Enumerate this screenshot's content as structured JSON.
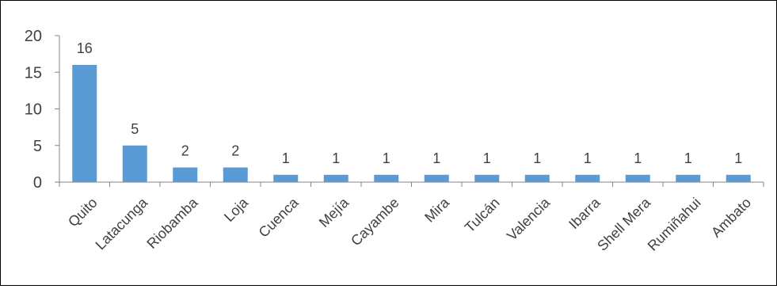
{
  "chart_data": {
    "type": "bar",
    "title": "",
    "xlabel": "",
    "ylabel": "",
    "categories": [
      "Quito",
      "Latacunga",
      "Riobamba",
      "Loja",
      "Cuenca",
      "Mejía",
      "Cayambe",
      "Mira",
      "Tulcán",
      "Valencia",
      "Ibarra",
      "Shell Mera",
      "Rumiñahui",
      "Ambato"
    ],
    "values": [
      16,
      5,
      2,
      2,
      1,
      1,
      1,
      1,
      1,
      1,
      1,
      1,
      1,
      1
    ],
    "ylim": [
      0,
      20
    ],
    "yticks": [
      "0",
      "5",
      "10",
      "15",
      "20"
    ],
    "data_labels": [
      "16",
      "5",
      "2",
      "2",
      "1",
      "1",
      "1",
      "1",
      "1",
      "1",
      "1",
      "1",
      "1",
      "1"
    ],
    "grid": false,
    "legend": "none",
    "bar_color": "#5b9bd5",
    "axis_color": "#868686",
    "text_color": "#404040"
  }
}
